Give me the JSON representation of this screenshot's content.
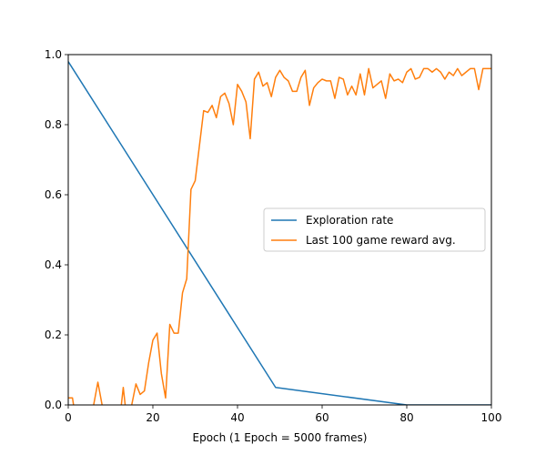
{
  "chart_data": {
    "type": "line",
    "title": "",
    "xlabel": "Epoch (1 Epoch = 5000 frames)",
    "ylabel": "",
    "xlim": [
      0,
      100
    ],
    "ylim": [
      0,
      1.0
    ],
    "x_ticks": [
      "0",
      "20",
      "40",
      "60",
      "80",
      "100"
    ],
    "y_ticks": [
      "0.0",
      "0.2",
      "0.4",
      "0.6",
      "0.8",
      "1.0"
    ],
    "grid": false,
    "legend_position": "center-right",
    "series": [
      {
        "name": "Exploration rate",
        "color": "#1f77b4",
        "x": [
          0,
          49,
          80,
          100
        ],
        "y": [
          0.98,
          0.05,
          0.0,
          0.0
        ]
      },
      {
        "name": "Last 100 game reward avg.",
        "color": "#ff7f0e",
        "x": [
          0,
          1,
          2,
          3,
          4,
          5,
          6,
          7,
          8,
          9,
          10,
          11,
          12,
          13,
          14,
          15,
          16,
          17,
          18,
          19,
          20,
          21,
          22,
          23,
          24,
          25,
          26,
          27,
          28,
          29,
          30,
          31,
          32,
          33,
          34,
          35,
          36,
          37,
          38,
          39,
          40,
          41,
          42,
          43,
          44,
          45,
          46,
          47,
          48,
          49,
          50,
          51,
          52,
          53,
          54,
          55,
          56,
          57,
          58,
          59,
          60,
          61,
          62,
          63,
          64,
          65,
          66,
          67,
          68,
          69,
          70,
          71,
          72,
          73,
          74,
          75,
          76,
          77,
          78,
          79,
          80,
          81,
          82,
          83,
          84,
          85,
          86,
          87,
          88,
          89,
          90,
          91,
          92,
          93,
          94,
          95,
          96,
          97,
          98,
          99,
          100
        ],
        "y": [
          0.02,
          0.02,
          -0.06,
          -0.06,
          -0.06,
          -0.06,
          0.0,
          0.065,
          0.0,
          -0.06,
          -0.06,
          -0.06,
          -0.06,
          0.05,
          -0.06,
          0.0,
          0.06,
          0.03,
          0.04,
          0.12,
          0.185,
          0.205,
          0.09,
          0.02,
          0.23,
          0.205,
          0.205,
          0.32,
          0.36,
          0.615,
          0.64,
          0.74,
          0.84,
          0.835,
          0.855,
          0.82,
          0.88,
          0.89,
          0.86,
          0.8,
          0.915,
          0.895,
          0.865,
          0.76,
          0.93,
          0.95,
          0.91,
          0.92,
          0.88,
          0.935,
          0.955,
          0.935,
          0.925,
          0.895,
          0.895,
          0.935,
          0.955,
          0.855,
          0.905,
          0.92,
          0.93,
          0.925,
          0.925,
          0.875,
          0.935,
          0.93,
          0.885,
          0.91,
          0.885,
          0.945,
          0.885,
          0.96,
          0.905,
          0.915,
          0.925,
          0.875,
          0.945,
          0.925,
          0.93,
          0.92,
          0.95,
          0.96,
          0.93,
          0.935,
          0.96,
          0.96,
          0.95,
          0.96,
          0.95,
          0.93,
          0.95,
          0.94,
          0.96,
          0.94,
          0.95,
          0.96,
          0.96,
          0.9,
          0.96,
          0.96,
          0.96
        ]
      }
    ]
  }
}
